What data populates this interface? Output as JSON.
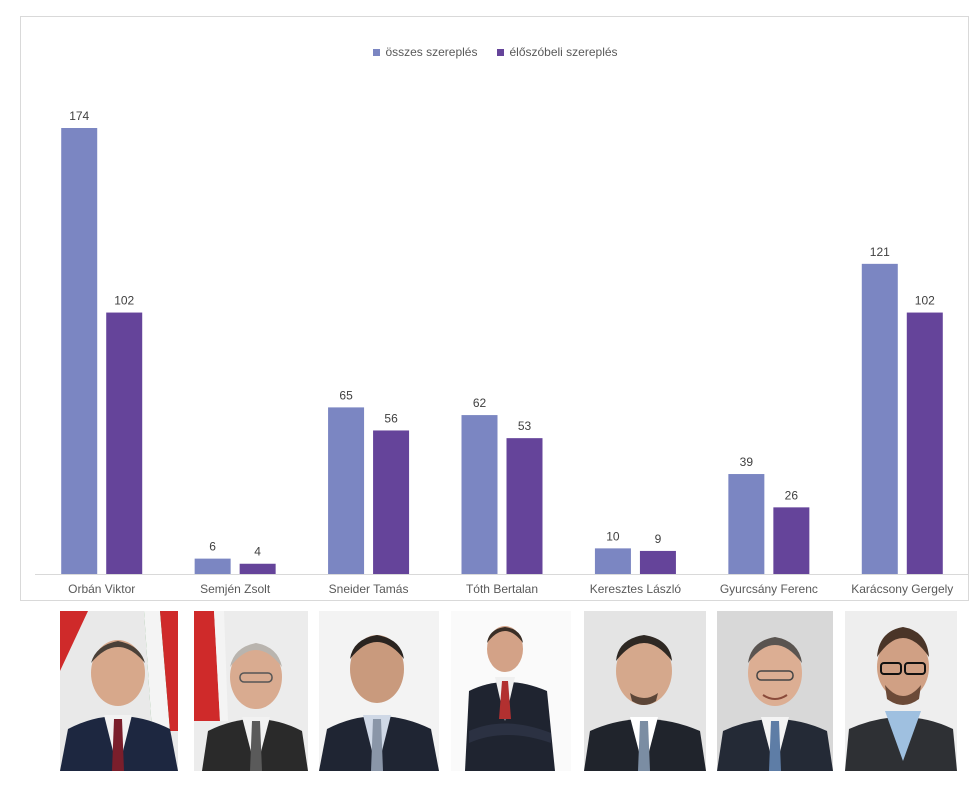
{
  "legend": {
    "series0": "összes szereplés",
    "series1": "élőszóbeli szereplés"
  },
  "colors": {
    "series0": "#7b86c2",
    "series1": "#65449a",
    "axis": "#d9d9d9",
    "label": "#404040"
  },
  "chart_data": {
    "type": "bar",
    "categories": [
      "Orbán Viktor",
      "Semjén Zsolt",
      "Sneider Tamás",
      "Tóth Bertalan",
      "Keresztes László",
      "Gyurcsány Ferenc",
      "Karácsony Gergely"
    ],
    "series": [
      {
        "name": "összes szereplés",
        "values": [
          174,
          6,
          65,
          62,
          10,
          39,
          121
        ]
      },
      {
        "name": "élőszóbeli szereplés",
        "values": [
          102,
          4,
          56,
          53,
          9,
          26,
          102
        ]
      }
    ],
    "ylim": [
      0,
      174
    ],
    "grid": false,
    "legend_position": "top",
    "data_labels": true
  },
  "photos": [
    {
      "person": "Orbán Viktor",
      "background": "flag"
    },
    {
      "person": "Semjén Zsolt",
      "background": "flag"
    },
    {
      "person": "Sneider Tamás",
      "background": "plain"
    },
    {
      "person": "Tóth Bertalan",
      "background": "plain"
    },
    {
      "person": "Keresztes László",
      "background": "plain"
    },
    {
      "person": "Gyurcsány Ferenc",
      "background": "plain"
    },
    {
      "person": "Karácsony Gergely",
      "background": "plain"
    }
  ]
}
